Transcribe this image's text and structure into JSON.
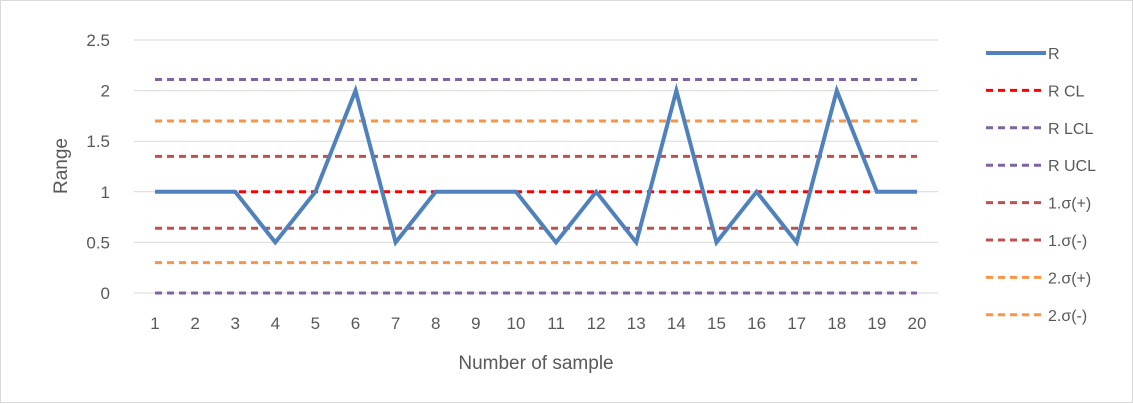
{
  "chart_data": {
    "type": "line",
    "title": "",
    "xlabel": "Number of sample",
    "ylabel": "Range",
    "x": [
      1,
      2,
      3,
      4,
      5,
      6,
      7,
      8,
      9,
      10,
      11,
      12,
      13,
      14,
      15,
      16,
      17,
      18,
      19,
      20
    ],
    "ylim": [
      0,
      2.5
    ],
    "yticks": [
      "0",
      "0.5",
      "1",
      "1.5",
      "2",
      "2.5"
    ],
    "grid": true,
    "legend_position": "right",
    "series": [
      {
        "name": "R",
        "style": "solid",
        "color": "#4f81bd",
        "values": [
          1,
          1,
          1,
          0.5,
          1,
          2,
          0.5,
          1,
          1,
          1,
          0.5,
          1,
          0.5,
          2,
          0.5,
          1,
          0.5,
          2,
          1,
          1
        ]
      },
      {
        "name": "R CL",
        "style": "dashed",
        "color": "#ff0000",
        "constant": 1
      },
      {
        "name": "R LCL",
        "style": "dashed",
        "color": "#8064a2",
        "constant": 0
      },
      {
        "name": "R UCL",
        "style": "dashed",
        "color": "#8064a2",
        "constant": 2.11
      },
      {
        "name": "1.σ(+)",
        "style": "dashed",
        "color": "#c0504d",
        "constant": 1.35
      },
      {
        "name": "1.σ(-)",
        "style": "dashed",
        "color": "#c0504d",
        "constant": 0.64
      },
      {
        "name": "2.σ(+)",
        "style": "dashed",
        "color": "#f79646",
        "constant": 1.7
      },
      {
        "name": "2.σ(-)",
        "style": "dashed",
        "color": "#f79646",
        "constant": 0.3
      }
    ]
  }
}
